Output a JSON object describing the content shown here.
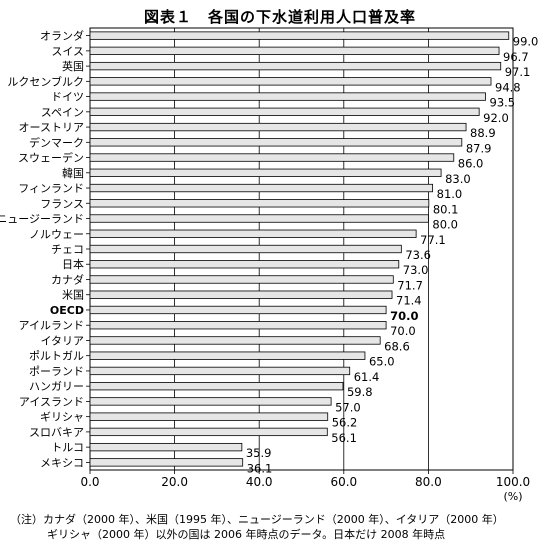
{
  "chart_data": {
    "type": "bar",
    "orientation": "horizontal",
    "title": "図表１　各国の下水道利用人口普及率",
    "categories": [
      "オランダ",
      "スイス",
      "英国",
      "ルクセンブルク",
      "ドイツ",
      "スペイン",
      "オーストリア",
      "デンマーク",
      "スウェーデン",
      "韓国",
      "フィンランド",
      "フランス",
      "ニュージーランド",
      "ノルウェー",
      "チェコ",
      "日本",
      "カナダ",
      "米国",
      "OECD",
      "アイルランド",
      "イタリア",
      "ポルトガル",
      "ポーランド",
      "ハンガリー",
      "アイスランド",
      "ギリシャ",
      "スロバキア",
      "トルコ",
      "メキシコ"
    ],
    "values": [
      99.0,
      96.7,
      97.1,
      94.8,
      93.5,
      92.0,
      88.9,
      87.9,
      86.0,
      83.0,
      81.0,
      80.1,
      80.0,
      77.1,
      73.6,
      73.0,
      71.7,
      71.4,
      70.0,
      70.0,
      68.6,
      65.0,
      61.4,
      59.8,
      57.0,
      56.2,
      56.1,
      35.9,
      36.1
    ],
    "value_labels": [
      "99.0",
      "96.7",
      "97.1",
      "94.8",
      "93.5",
      "92.0",
      "88.9",
      "87.9",
      "86.0",
      "83.0",
      "81.0",
      "80.1",
      "80.0",
      "77.1",
      "73.6",
      "73.0",
      "71.7",
      "71.4",
      "70.0",
      "70.0",
      "68.6",
      "65.0",
      "61.4",
      "59.8",
      "57.0",
      "56.2",
      "56.1",
      "35.9",
      "36.1"
    ],
    "highlight_category": "OECD",
    "xlim": [
      0,
      100
    ],
    "x_ticks": [
      "0.0",
      "20.0",
      "40.0",
      "60.0",
      "80.0",
      "100.0"
    ],
    "x_unit": "(%)",
    "grid": true,
    "bar_color": "#e6e6e6",
    "bar_edge_color": "#000000"
  },
  "notes": [
    "（注）カナダ（2000 年）、米国（1995 年）、ニュージーランド（2000 年）、イタリア（2000 年）",
    "ギリシャ（2000 年）以外の国は 2006 年時点のデータ。日本だけ 2008 年時点"
  ]
}
